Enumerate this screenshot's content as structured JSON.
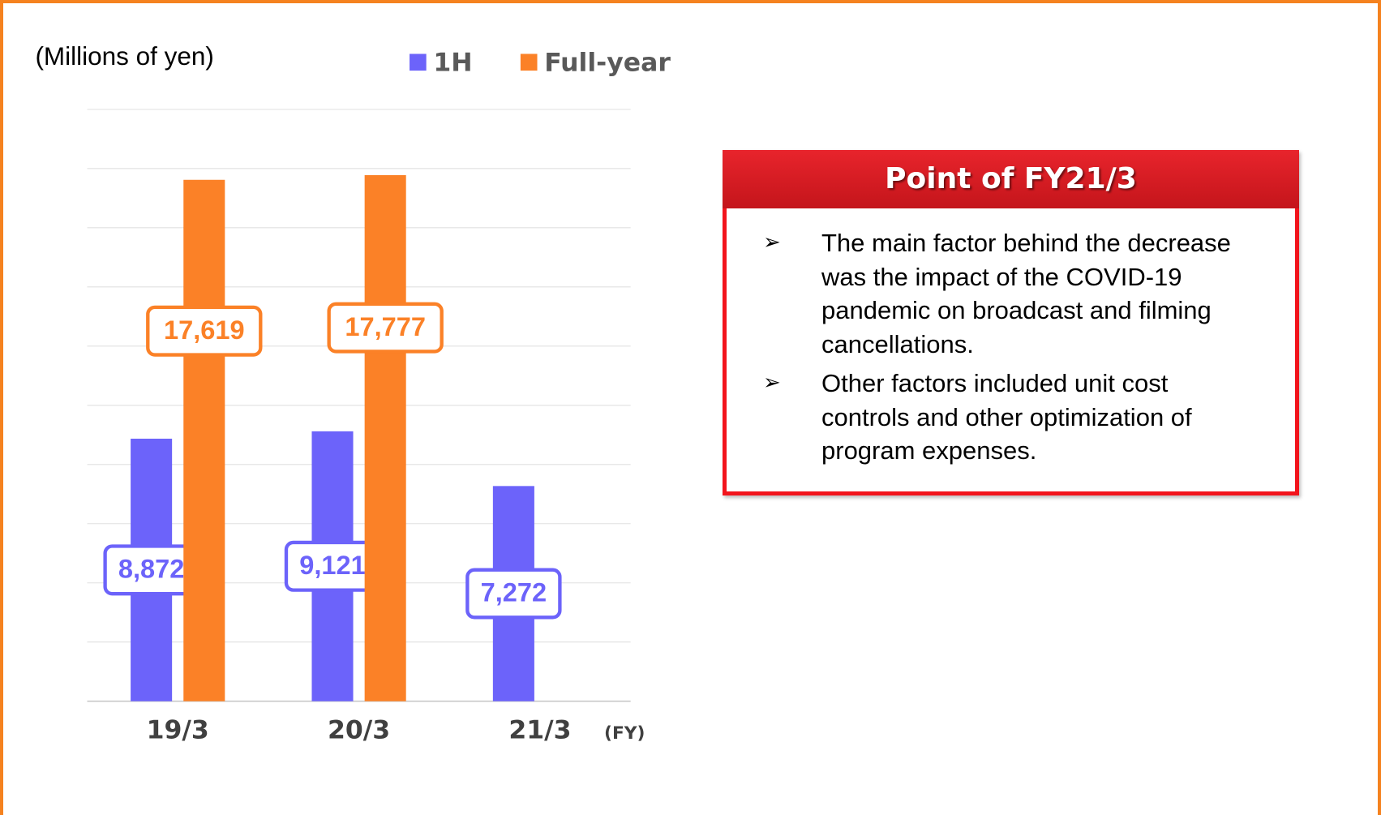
{
  "chart_data": {
    "type": "bar",
    "unit_label": "(Millions of yen)",
    "x_label": "(FY)",
    "categories": [
      "19/3",
      "20/3",
      "21/3"
    ],
    "series": [
      {
        "name": "1H",
        "color": "#6c63fa",
        "values": [
          8872,
          9121,
          7272
        ],
        "value_labels": [
          "8,872",
          "9,121",
          "7,272"
        ]
      },
      {
        "name": "Full-year",
        "color": "#fb8127",
        "values": [
          17619,
          17777,
          null
        ],
        "value_labels": [
          "17,619",
          "17,777",
          null
        ]
      }
    ],
    "ylim": [
      0,
      20000
    ],
    "yticks": [
      0,
      2000,
      4000,
      6000,
      8000,
      10000,
      12000,
      14000,
      16000,
      18000,
      20000
    ],
    "grid": true
  },
  "callout": {
    "title": "Point of FY21/3",
    "bullets": [
      "The main factor behind the decrease was the impact of the COVID-19 pandemic on broadcast and filming cancellations.",
      "Other factors included unit cost controls and other optimization of program expenses."
    ]
  }
}
